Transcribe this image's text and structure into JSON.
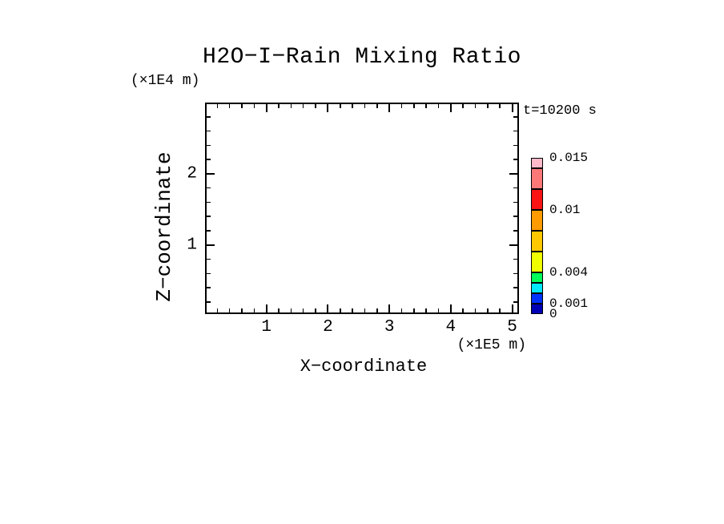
{
  "figure": {
    "title": "H2O−I−Rain Mixing Ratio",
    "time_label": "t=10200 s",
    "x_axis": {
      "label": "X−coordinate",
      "unit_label": "(×1E5 m)",
      "tick_labels": [
        "1",
        "2",
        "3",
        "4",
        "5"
      ]
    },
    "z_axis": {
      "label": "Z−coordinate",
      "unit_label": "(×1E4 m)",
      "tick_labels": [
        "1",
        "2"
      ]
    }
  },
  "chart_data": {
    "type": "heatmap",
    "title": "H2O-I-Rain Mixing Ratio",
    "time_annotation": "t=10200 s",
    "xlabel": "X-coordinate (×1E5 m)",
    "ylabel": "Z-coordinate (×1E4 m)",
    "xlim": [
      0,
      5.11
    ],
    "ylim": [
      0.03,
      3.0
    ],
    "x_major_ticks": [
      1,
      2,
      3,
      4,
      5
    ],
    "y_major_ticks": [
      1,
      2
    ],
    "x_minor_step": 0.2,
    "y_minor_step": 0.2,
    "grid": false,
    "plotted_field": "empty — no mixing-ratio contour regions visible inside the plot area",
    "colorbar": {
      "value_range": [
        0,
        0.015
      ],
      "levels": [
        0,
        0.001,
        0.002,
        0.003,
        0.004,
        0.006,
        0.008,
        0.01,
        0.012,
        0.014,
        0.015
      ],
      "colors_bottom_to_top": [
        "#0000B4",
        "#0032FF",
        "#00E8FF",
        "#00FF5A",
        "#F0FF00",
        "#FFC800",
        "#FF9B00",
        "#FA1414",
        "#FF7878",
        "#FFB9C8"
      ],
      "labeled_levels": [
        {
          "value": 0.015,
          "label": "0.015"
        },
        {
          "value": 0.01,
          "label": "0.01"
        },
        {
          "value": 0.004,
          "label": "0.004"
        },
        {
          "value": 0.001,
          "label": "0.001"
        },
        {
          "value": 0,
          "label": "0"
        }
      ],
      "legend_position": "right"
    }
  }
}
